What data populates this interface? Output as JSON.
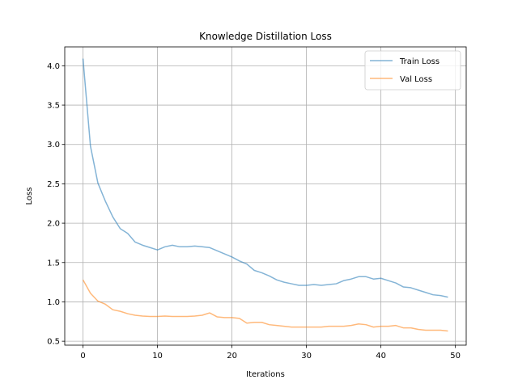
{
  "chart_data": {
    "type": "line",
    "title": "Knowledge Distillation Loss",
    "xlabel": "Iterations",
    "ylabel": "Loss",
    "xlim": [
      -2.45,
      51.45
    ],
    "ylim": [
      0.45,
      4.24
    ],
    "xticks": [
      0,
      10,
      20,
      30,
      40,
      50
    ],
    "yticks": [
      0.5,
      1.0,
      1.5,
      2.0,
      2.5,
      3.0,
      3.5,
      4.0
    ],
    "xtick_labels": [
      "0",
      "10",
      "20",
      "30",
      "40",
      "50"
    ],
    "ytick_labels": [
      "0.5",
      "1.0",
      "1.5",
      "2.0",
      "2.5",
      "3.0",
      "3.5",
      "4.0"
    ],
    "grid": true,
    "legend_position": "top-right",
    "series": [
      {
        "name": "Train Loss",
        "color": "#1f77b4",
        "x": [
          0,
          1,
          2,
          3,
          4,
          5,
          6,
          7,
          8,
          9,
          10,
          11,
          12,
          13,
          14,
          15,
          16,
          17,
          18,
          19,
          20,
          21,
          22,
          23,
          24,
          25,
          26,
          27,
          28,
          29,
          30,
          31,
          32,
          33,
          34,
          35,
          36,
          37,
          38,
          39,
          40,
          41,
          42,
          43,
          44,
          45,
          46,
          47,
          48,
          49
        ],
        "values": [
          4.09,
          2.98,
          2.51,
          2.28,
          2.08,
          1.93,
          1.87,
          1.76,
          1.72,
          1.69,
          1.66,
          1.7,
          1.72,
          1.7,
          1.7,
          1.71,
          1.7,
          1.69,
          1.65,
          1.61,
          1.57,
          1.52,
          1.48,
          1.4,
          1.37,
          1.33,
          1.28,
          1.25,
          1.23,
          1.21,
          1.21,
          1.22,
          1.21,
          1.22,
          1.23,
          1.27,
          1.29,
          1.32,
          1.32,
          1.29,
          1.3,
          1.27,
          1.24,
          1.19,
          1.18,
          1.15,
          1.12,
          1.09,
          1.08,
          1.06
        ]
      },
      {
        "name": "Val Loss",
        "color": "#ff7f0e",
        "x": [
          0,
          1,
          2,
          3,
          4,
          5,
          6,
          7,
          8,
          9,
          10,
          11,
          12,
          13,
          14,
          15,
          16,
          17,
          18,
          19,
          20,
          21,
          22,
          23,
          24,
          25,
          26,
          27,
          28,
          29,
          30,
          31,
          32,
          33,
          34,
          35,
          36,
          37,
          38,
          39,
          40,
          41,
          42,
          43,
          44,
          45,
          46,
          47,
          48,
          49
        ],
        "values": [
          1.28,
          1.11,
          1.01,
          0.97,
          0.9,
          0.88,
          0.85,
          0.83,
          0.82,
          0.815,
          0.815,
          0.82,
          0.815,
          0.815,
          0.815,
          0.82,
          0.83,
          0.86,
          0.81,
          0.8,
          0.8,
          0.79,
          0.73,
          0.74,
          0.74,
          0.71,
          0.7,
          0.69,
          0.68,
          0.68,
          0.68,
          0.68,
          0.68,
          0.69,
          0.69,
          0.69,
          0.7,
          0.72,
          0.71,
          0.68,
          0.69,
          0.69,
          0.7,
          0.67,
          0.67,
          0.65,
          0.64,
          0.64,
          0.64,
          0.63
        ]
      }
    ]
  }
}
